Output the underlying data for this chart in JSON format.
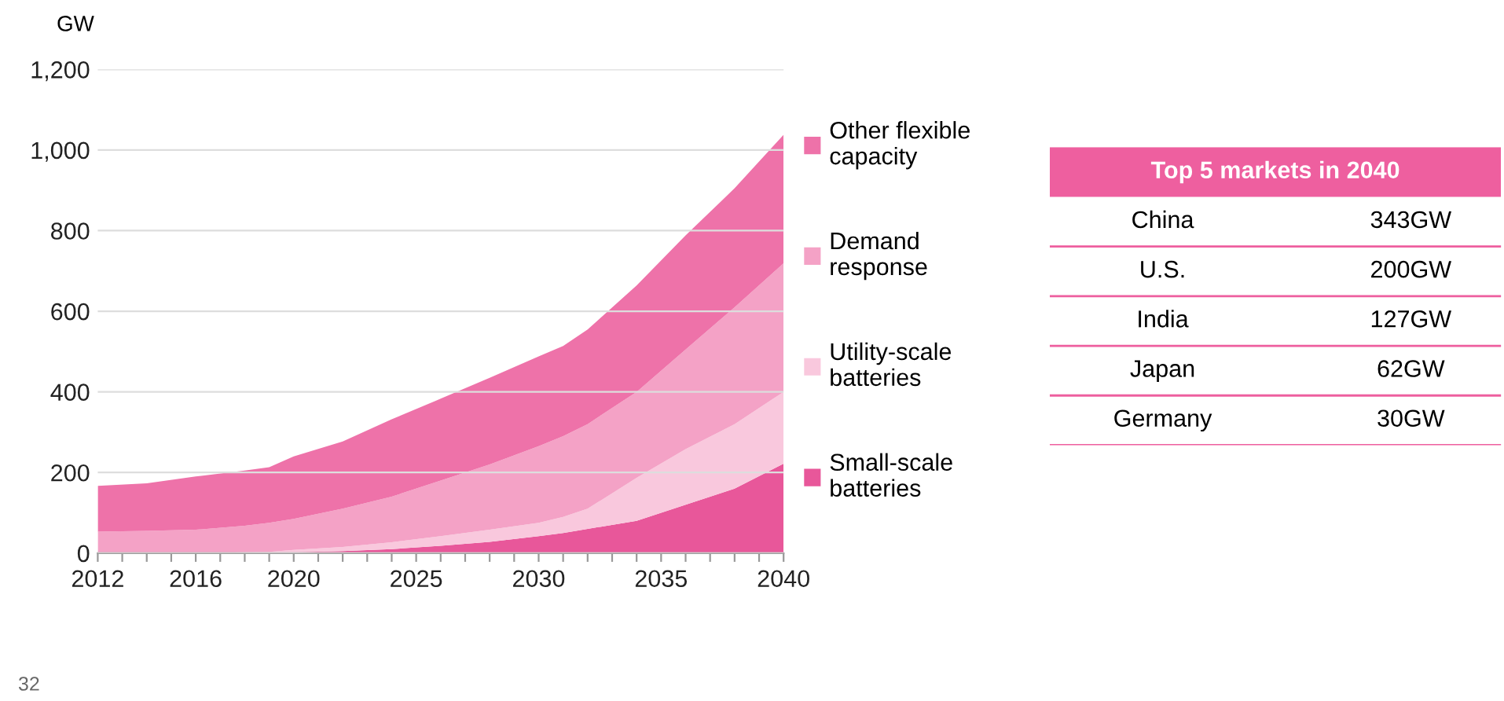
{
  "chart_data": [
    {
      "type": "area",
      "stacked": true,
      "ylabel": "GW",
      "x": [
        2012,
        2014,
        2016,
        2018,
        2019,
        2020,
        2022,
        2024,
        2026,
        2028,
        2030,
        2031,
        2032,
        2034,
        2036,
        2038,
        2040
      ],
      "series": [
        {
          "name": "Small-scale batteries",
          "color": "#e8579a",
          "values": [
            0,
            0,
            0,
            0,
            0,
            2,
            5,
            10,
            18,
            28,
            42,
            50,
            60,
            80,
            120,
            160,
            222
          ]
        },
        {
          "name": "Utility-scale batteries",
          "color": "#f9c8dd",
          "values": [
            0,
            0,
            0,
            2,
            3,
            6,
            10,
            17,
            24,
            30,
            33,
            40,
            50,
            107,
            138,
            160,
            178
          ]
        },
        {
          "name": "Demand response",
          "color": "#f4a2c6",
          "values": [
            53,
            55,
            58,
            66,
            72,
            77,
            95,
            113,
            138,
            162,
            190,
            200,
            210,
            213,
            247,
            290,
            319
          ]
        },
        {
          "name": "Other flexible capacity",
          "color": "#ee72a9",
          "values": [
            114,
            118,
            132,
            137,
            138,
            155,
            167,
            192,
            203,
            215,
            223,
            224,
            235,
            264,
            283,
            295,
            319
          ]
        }
      ],
      "xlim": [
        2012,
        2040
      ],
      "xticks": [
        2012,
        {
          "value": 2013,
          "label": null
        },
        {
          "value": 2014,
          "label": null
        },
        {
          "value": 2015,
          "label": null
        },
        2016,
        {
          "value": 2017,
          "label": null
        },
        {
          "value": 2018,
          "label": null
        },
        {
          "value": 2019,
          "label": null
        },
        2020,
        {
          "value": 2021,
          "label": null
        },
        {
          "value": 2022,
          "label": null
        },
        {
          "value": 2023,
          "label": null
        },
        {
          "value": 2024,
          "label": null
        },
        2025,
        {
          "value": 2026,
          "label": null
        },
        {
          "value": 2027,
          "label": null
        },
        {
          "value": 2028,
          "label": null
        },
        {
          "value": 2029,
          "label": null
        },
        2030,
        {
          "value": 2031,
          "label": null
        },
        {
          "value": 2032,
          "label": null
        },
        {
          "value": 2033,
          "label": null
        },
        {
          "value": 2034,
          "label": null
        },
        2035,
        {
          "value": 2036,
          "label": null
        },
        {
          "value": 2037,
          "label": null
        },
        {
          "value": 2038,
          "label": null
        },
        {
          "value": 2039,
          "label": null
        },
        2040
      ],
      "ylim": [
        0,
        1200
      ],
      "yticks": [
        0,
        200,
        400,
        600,
        800,
        {
          "value": 1000,
          "label": "1,000"
        },
        {
          "value": 1200,
          "label": "1,200"
        }
      ],
      "grid": "y",
      "legend": "right",
      "annotations": [
        "32"
      ]
    },
    {
      "type": "other",
      "title": "Top 5 markets in 2040",
      "color": "#ee5f9f",
      "categories": [
        "China",
        "U.S.",
        "India",
        "Japan",
        "Germany"
      ],
      "value_labels": [
        "343GW",
        "200GW",
        "127GW",
        "62GW",
        "30GW"
      ]
    }
  ]
}
